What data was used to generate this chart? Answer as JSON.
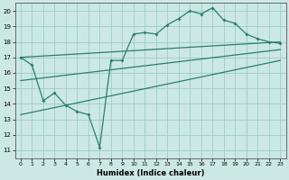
{
  "xlabel": "Humidex (Indice chaleur)",
  "xlim": [
    -0.5,
    23.5
  ],
  "ylim": [
    10.5,
    20.5
  ],
  "yticks": [
    11,
    12,
    13,
    14,
    15,
    16,
    17,
    18,
    19,
    20
  ],
  "xticks": [
    0,
    1,
    2,
    3,
    4,
    5,
    6,
    7,
    8,
    9,
    10,
    11,
    12,
    13,
    14,
    15,
    16,
    17,
    18,
    19,
    20,
    21,
    22,
    23
  ],
  "line_color": "#2a7d6e",
  "bg_color": "#cce8e4",
  "grid_color": "#99cdc7",
  "main_line_x": [
    0,
    1,
    2,
    3,
    4,
    5,
    6,
    7,
    8,
    9,
    10,
    11,
    12,
    13,
    14,
    15,
    16,
    17,
    18,
    19,
    20,
    21,
    22,
    23
  ],
  "main_line_y": [
    17.0,
    16.5,
    14.2,
    14.7,
    13.9,
    13.5,
    13.3,
    11.2,
    16.8,
    16.8,
    18.5,
    18.6,
    18.5,
    19.1,
    19.5,
    20.0,
    19.8,
    20.2,
    19.4,
    19.2,
    18.5,
    18.2,
    18.0,
    17.9
  ],
  "reg_line1_x": [
    0,
    23
  ],
  "reg_line1_y": [
    17.0,
    18.0
  ],
  "reg_line2_x": [
    0,
    23
  ],
  "reg_line2_y": [
    15.5,
    17.5
  ],
  "reg_line3_x": [
    0,
    23
  ],
  "reg_line3_y": [
    13.3,
    16.8
  ]
}
